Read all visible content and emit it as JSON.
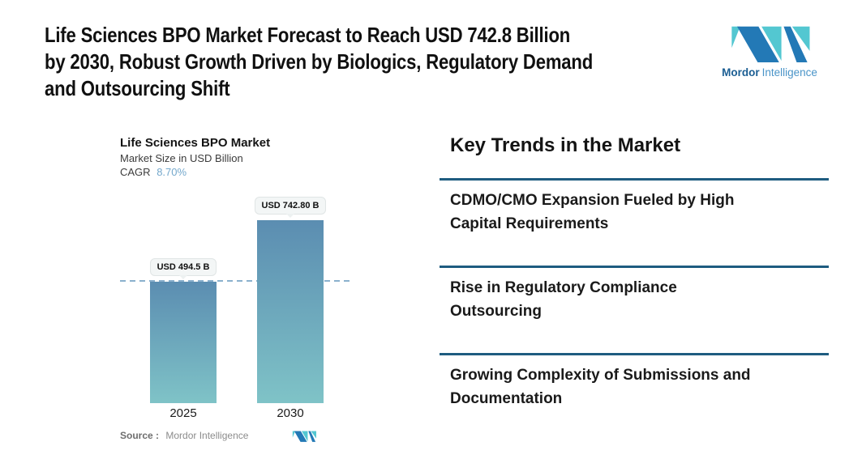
{
  "header": {
    "title_lines": [
      "Life Sciences BPO Market Forecast to Reach USD 742.8 Billion",
      "by 2030, Robust Growth Driven by Biologics, Regulatory Demand",
      "and Outsourcing Shift"
    ]
  },
  "brand": {
    "name_primary": "Mordor",
    "name_secondary": "Intelligence",
    "logo_teal": "#53C7D1",
    "logo_blue": "#2379B6"
  },
  "chart_data": {
    "type": "bar",
    "title": "Life Sciences BPO Market",
    "subtitle": "Market Size in USD Billion",
    "cagr_label": "CAGR",
    "cagr_value": "8.70%",
    "categories": [
      "2025",
      "2030"
    ],
    "values": [
      494.5,
      742.8
    ],
    "value_labels": [
      "USD 494.5 B",
      "USD 742.80 B"
    ],
    "ylabel": "Market Size in USD Billion",
    "ylim": [
      0,
      742.8
    ],
    "legend": "none",
    "reference_line": {
      "at_value": 494.5,
      "style": "dashed"
    },
    "source_label": "Source :",
    "source_value": "Mordor Intelligence",
    "colors": {
      "bar_gradient_top": "#5B8DB1",
      "bar_gradient_bottom": "#7FC3C7",
      "dashed_line": "#8BB1CD",
      "cagr_value": "#74A8CC"
    }
  },
  "trends": {
    "heading": "Key Trends in the Market",
    "divider_color": "#1E5C80",
    "items": [
      {
        "text": "CDMO/CMO Expansion Fueled by High Capital Requirements",
        "lines": [
          "CDMO/CMO Expansion Fueled by High",
          "Capital Requirements"
        ]
      },
      {
        "text": "Rise in Regulatory Compliance Outsourcing",
        "lines": [
          "Rise in Regulatory Compliance",
          "Outsourcing"
        ]
      },
      {
        "text": "Growing Complexity of Submissions and Documentation",
        "lines": [
          "Growing Complexity of Submissions and",
          "Documentation"
        ]
      }
    ]
  }
}
